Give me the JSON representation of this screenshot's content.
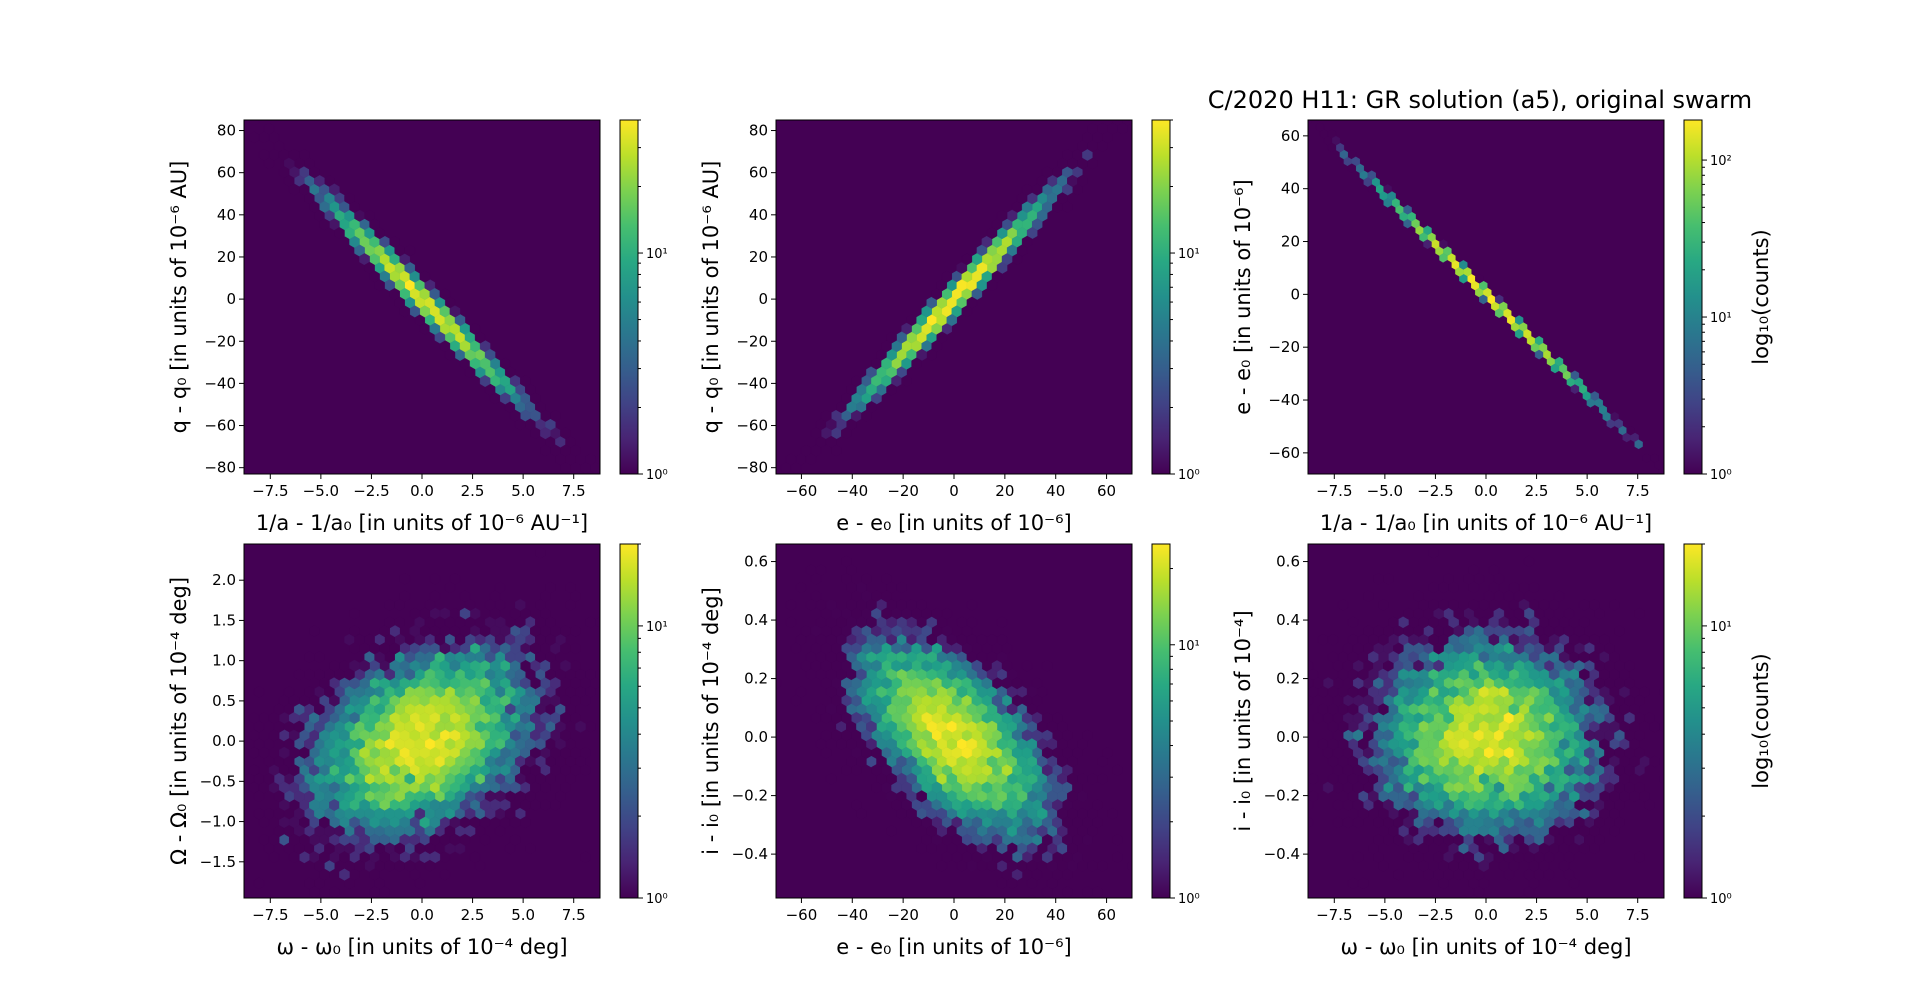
{
  "figure": {
    "title": "C/2020 H11: GR solution (a5), original swarm",
    "background_color": "#ffffff",
    "plot_background_color": "#440154",
    "colormap": "viridis"
  },
  "chart_data": [
    {
      "type": "heatmap",
      "subtype": "hexbin",
      "xlabel": "1/a - 1/a₀ [in units of 10⁻⁶ AU⁻¹]",
      "ylabel": "q - q₀ [in units of 10⁻⁶ AU]",
      "xlim": [
        -8.8,
        8.8
      ],
      "ylim": [
        -83,
        85
      ],
      "xticks": [
        -7.5,
        -5.0,
        -2.5,
        0.0,
        2.5,
        5.0,
        7.5
      ],
      "xtick_labels": [
        "−7.5",
        "−5.0",
        "−2.5",
        "0.0",
        "2.5",
        "5.0",
        "7.5"
      ],
      "yticks": [
        -80,
        -60,
        -40,
        -20,
        0,
        20,
        40,
        60,
        80
      ],
      "ytick_labels": [
        "−80",
        "−60",
        "−40",
        "−20",
        "0",
        "20",
        "40",
        "60",
        "80"
      ],
      "distribution": {
        "mean_x": 0,
        "sigma_x": 2.5,
        "mean_y": 0,
        "sigma_y": 25,
        "correlation": -0.99
      },
      "colorbar": {
        "scale": "log",
        "range": [
          1,
          40
        ],
        "tick_labels": [
          "10⁰",
          "10¹"
        ],
        "label": ""
      }
    },
    {
      "type": "heatmap",
      "subtype": "hexbin",
      "xlabel": "e - e₀ [in units of 10⁻⁶]",
      "ylabel": "q - q₀ [in units of 10⁻⁶ AU]",
      "xlim": [
        -70,
        70
      ],
      "ylim": [
        -83,
        85
      ],
      "xticks": [
        -60,
        -40,
        -20,
        0,
        20,
        40,
        60
      ],
      "xtick_labels": [
        "−60",
        "−40",
        "−20",
        "0",
        "20",
        "40",
        "60"
      ],
      "yticks": [
        -80,
        -60,
        -40,
        -20,
        0,
        20,
        40,
        60,
        80
      ],
      "ytick_labels": [
        "−80",
        "−60",
        "−40",
        "−20",
        "0",
        "20",
        "40",
        "60",
        "80"
      ],
      "distribution": {
        "mean_x": 0,
        "sigma_x": 19,
        "mean_y": 0,
        "sigma_y": 25,
        "correlation": 0.99
      },
      "colorbar": {
        "scale": "log",
        "range": [
          1,
          40
        ],
        "tick_labels": [
          "10⁰",
          "10¹"
        ],
        "label": ""
      }
    },
    {
      "type": "heatmap",
      "subtype": "hexbin",
      "xlabel": "1/a - 1/a₀ [in units of 10⁻⁶ AU⁻¹]",
      "ylabel": "e - e₀ [in units of 10⁻⁶]",
      "xlim": [
        -8.8,
        8.8
      ],
      "ylim": [
        -68,
        66
      ],
      "xticks": [
        -7.5,
        -5.0,
        -2.5,
        0.0,
        2.5,
        5.0,
        7.5
      ],
      "xtick_labels": [
        "−7.5",
        "−5.0",
        "−2.5",
        "0.0",
        "2.5",
        "5.0",
        "7.5"
      ],
      "yticks": [
        -60,
        -40,
        -20,
        0,
        20,
        40,
        60
      ],
      "ytick_labels": [
        "−60",
        "−40",
        "−20",
        "0",
        "20",
        "40",
        "60"
      ],
      "distribution": {
        "mean_x": 0,
        "sigma_x": 2.5,
        "mean_y": 0,
        "sigma_y": 19,
        "correlation": -0.9999
      },
      "colorbar": {
        "scale": "log",
        "range": [
          1,
          180
        ],
        "tick_labels": [
          "10⁰",
          "10¹",
          "10²"
        ],
        "label": "log₁₀(counts)"
      }
    },
    {
      "type": "heatmap",
      "subtype": "hexbin",
      "xlabel": "ω - ω₀ [in units of 10⁻⁴ deg]",
      "ylabel": "Ω - Ω₀ [in units of 10⁻⁴ deg]",
      "xlim": [
        -8.8,
        8.8
      ],
      "ylim": [
        -1.95,
        2.45
      ],
      "xticks": [
        -7.5,
        -5.0,
        -2.5,
        0.0,
        2.5,
        5.0,
        7.5
      ],
      "xtick_labels": [
        "−7.5",
        "−5.0",
        "−2.5",
        "0.0",
        "2.5",
        "5.0",
        "7.5"
      ],
      "yticks": [
        -1.5,
        -1.0,
        -0.5,
        0.0,
        0.5,
        1.0,
        1.5,
        2.0
      ],
      "ytick_labels": [
        "−1.5",
        "−1.0",
        "−0.5",
        "0.0",
        "0.5",
        "1.0",
        "1.5",
        "2.0"
      ],
      "distribution": {
        "mean_x": 0,
        "sigma_x": 2.8,
        "mean_y": 0,
        "sigma_y": 0.6,
        "correlation": 0.35
      },
      "colorbar": {
        "scale": "log",
        "range": [
          1,
          20
        ],
        "tick_labels": [
          "10⁰",
          "10¹"
        ],
        "label": ""
      }
    },
    {
      "type": "heatmap",
      "subtype": "hexbin",
      "xlabel": "e - e₀ [in units of 10⁻⁶]",
      "ylabel": "i - i₀ [in units of 10⁻⁴ deg]",
      "xlim": [
        -70,
        70
      ],
      "ylim": [
        -0.55,
        0.66
      ],
      "xticks": [
        -60,
        -40,
        -20,
        0,
        20,
        40,
        60
      ],
      "xtick_labels": [
        "−60",
        "−40",
        "−20",
        "0",
        "20",
        "40",
        "60"
      ],
      "yticks": [
        -0.4,
        -0.2,
        0.0,
        0.2,
        0.4,
        0.6
      ],
      "ytick_labels": [
        "−0.4",
        "−0.2",
        "0.0",
        "0.2",
        "0.4",
        "0.6"
      ],
      "distribution": {
        "mean_x": 0,
        "sigma_x": 19,
        "mean_y": 0,
        "sigma_y": 0.17,
        "correlation": -0.6
      },
      "colorbar": {
        "scale": "log",
        "range": [
          1,
          25
        ],
        "tick_labels": [
          "10⁰",
          "10¹"
        ],
        "label": ""
      }
    },
    {
      "type": "heatmap",
      "subtype": "hexbin",
      "xlabel": "ω - ω₀ [in units of 10⁻⁴ deg]",
      "ylabel": "i - i₀ [in units of 10⁻⁴]",
      "xlim": [
        -8.8,
        8.8
      ],
      "ylim": [
        -0.55,
        0.66
      ],
      "xticks": [
        -7.5,
        -5.0,
        -2.5,
        0.0,
        2.5,
        5.0,
        7.5
      ],
      "xtick_labels": [
        "−7.5",
        "−5.0",
        "−2.5",
        "0.0",
        "2.5",
        "5.0",
        "7.5"
      ],
      "yticks": [
        -0.4,
        -0.2,
        0.0,
        0.2,
        0.4,
        0.6
      ],
      "ytick_labels": [
        "−0.4",
        "−0.2",
        "0.0",
        "0.2",
        "0.4",
        "0.6"
      ],
      "distribution": {
        "mean_x": 0,
        "sigma_x": 2.8,
        "mean_y": 0,
        "sigma_y": 0.17,
        "correlation": -0.05
      },
      "colorbar": {
        "scale": "log",
        "range": [
          1,
          20
        ],
        "tick_labels": [
          "10⁰",
          "10¹"
        ],
        "label": "log₁₀(counts)"
      }
    }
  ]
}
